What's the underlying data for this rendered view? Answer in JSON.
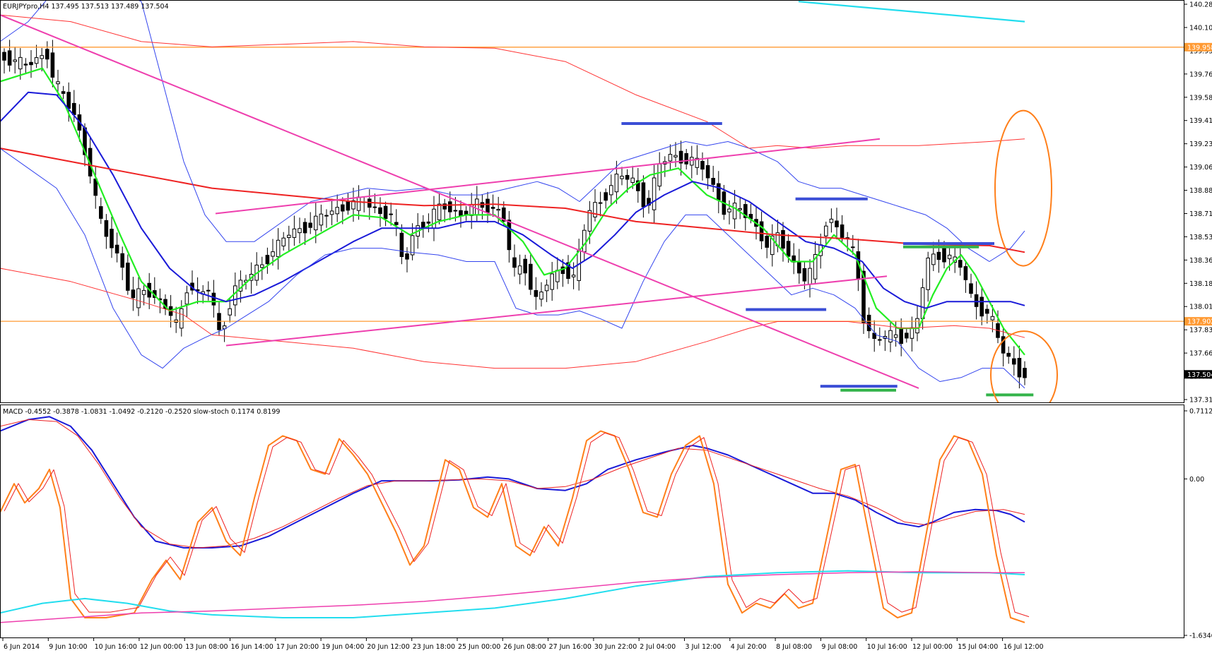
{
  "header": {
    "symbol_info": "EURJPYpro,H4 137.495 137.513 137.489 137.504",
    "indicator_info": "MACD -0.4552 -0.3878 -1.0831 -1.0492 -0.2120 -0.2520 slow-stoch 0.1174 0.8199"
  },
  "colors": {
    "frame": "#000000",
    "bull": "#ffffff",
    "bear": "#000000",
    "horizontal_level": "#ff9a33",
    "pink_trendline": "#ee3fae",
    "ma_green": "#22ee22",
    "ma_blue": "#1a1ad8",
    "ma_red": "#ee2222",
    "bollinger": "#3344ee",
    "envelope": "#ff3333",
    "cyan": "#22ddee",
    "orange_osc": "#ff7f1a",
    "marker_blue": "#3b4ed6",
    "marker_green": "#33b34a",
    "circle": "#ff7f1a"
  },
  "price_axis": {
    "ticks": [
      "140.280",
      "140.105",
      "139.930",
      "139.760",
      "139.585",
      "139.410",
      "139.235",
      "139.060",
      "138.885",
      "138.710",
      "138.535",
      "138.360",
      "138.185",
      "138.010",
      "137.835",
      "137.660",
      "137.490",
      "137.315"
    ],
    "level_labels": [
      "139.958",
      "137.902"
    ],
    "current_price": "137.504"
  },
  "indicator_axis": {
    "ticks": [
      "0.7112",
      "0.00",
      "-1.6346"
    ]
  },
  "time_axis": {
    "labels": [
      "6 Jun 2014",
      "9 Jun 10:00",
      "10 Jun 16:00",
      "12 Jun 00:00",
      "13 Jun 08:00",
      "16 Jun 14:00",
      "17 Jun 20:00",
      "19 Jun 04:00",
      "20 Jun 12:00",
      "23 Jun 18:00",
      "25 Jun 00:00",
      "26 Jun 08:00",
      "27 Jun 16:00",
      "30 Jun 22:00",
      "2 Jul 04:00",
      "3 Jul 12:00",
      "4 Jul 20:00",
      "8 Jul 08:00",
      "9 Jul 08:00",
      "10 Jul 16:00",
      "12 Jul 00:00",
      "15 Jul 04:00",
      "16 Jul 12:00"
    ]
  },
  "annotations": {
    "horizontal_levels": [
      139.958,
      137.902
    ],
    "blue_markers": [
      {
        "x_from": 0.525,
        "x_to": 0.61,
        "price": 139.385
      },
      {
        "x_from": 0.672,
        "x_to": 0.733,
        "price": 138.82
      },
      {
        "x_from": 0.763,
        "x_to": 0.84,
        "price": 138.485
      },
      {
        "x_from": 0.63,
        "x_to": 0.698,
        "price": 137.99
      },
      {
        "x_from": 0.693,
        "x_to": 0.758,
        "price": 137.415
      }
    ],
    "green_markers": [
      {
        "x_from": 0.763,
        "x_to": 0.827,
        "price": 138.46
      },
      {
        "x_from": 0.71,
        "x_to": 0.757,
        "price": 137.385
      },
      {
        "x_from": 0.833,
        "x_to": 0.873,
        "price": 137.35
      }
    ]
  }
}
